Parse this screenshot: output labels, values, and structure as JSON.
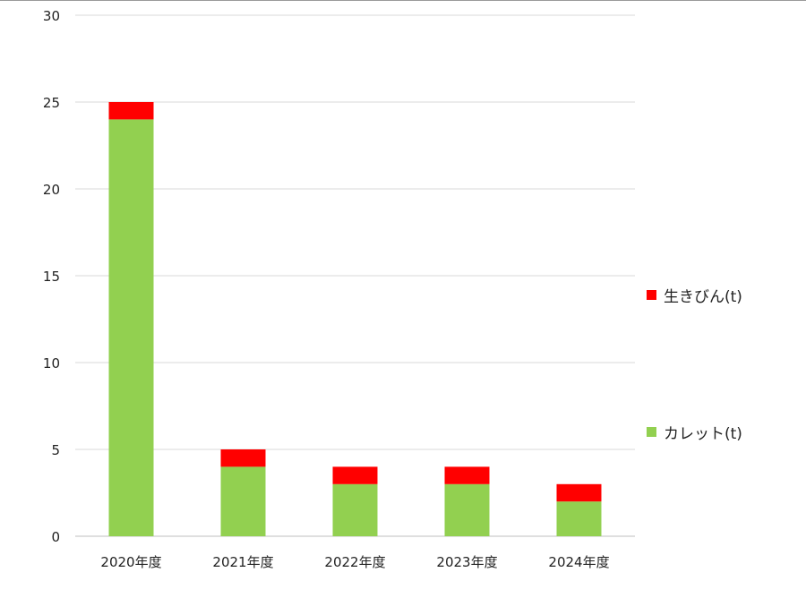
{
  "chart_data": {
    "type": "bar",
    "stacked": true,
    "categories": [
      "2020年度",
      "2021年度",
      "2022年度",
      "2023年度",
      "2024年度"
    ],
    "series": [
      {
        "name": "カレット(t)",
        "color": "#92d050",
        "values": [
          24,
          4,
          3,
          3,
          2
        ]
      },
      {
        "name": "生きびん(t)",
        "color": "#ff0000",
        "values": [
          1,
          1,
          1,
          1,
          1
        ]
      }
    ],
    "ylim": [
      0,
      30
    ],
    "yticks": [
      0,
      5,
      10,
      15,
      20,
      25,
      30
    ],
    "grid": true,
    "legend_position": "right",
    "title": "",
    "xlabel": "",
    "ylabel": ""
  }
}
